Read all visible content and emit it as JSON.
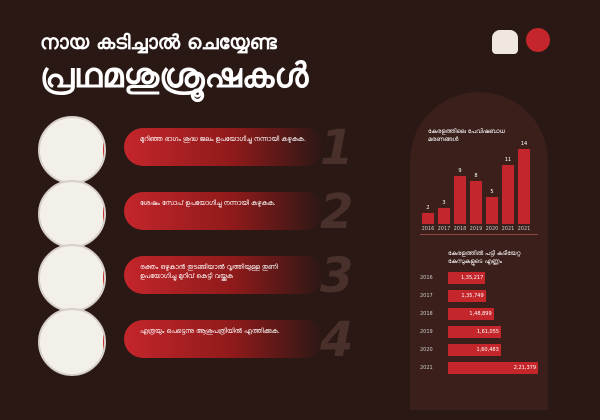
{
  "header": {
    "line1": "നായ കടിച്ചാൽ ചെയ്യേണ്ട",
    "line2": "പ്രഥമശുശ്രൂഷകൾ"
  },
  "steps": [
    {
      "number": "1",
      "text": "മുറിഞ്ഞ ഭാഗം ശുദ്ധ ജലം ഉപയോഗിച്ചു നന്നായി കഴുകുക.",
      "icon": "tap-water-hands-icon"
    },
    {
      "number": "2",
      "text": "ശേഷം സോപ് ഉപയോഗിച്ചു നന്നായി കഴുകുക.",
      "icon": "soap-hands-icon"
    },
    {
      "number": "3",
      "text": "രക്തം ഒഴുകാൻ തുടങ്ങിയാൽ വൃത്തിയുള്ള തുണി ഉപയോഗിച്ചു മുറിവ് കെട്ടി വയ്ക്കുക",
      "icon": "bandaged-hand-icon"
    },
    {
      "number": "4",
      "text": "എത്രയും പെട്ടെന്നു ആശുപത്രിയിൽ എത്തിക്കുക.",
      "icon": "hospital-icon"
    }
  ],
  "chart_data": [
    {
      "type": "bar",
      "title": "കേരളത്തിലെ പേവിഷബാധ മരണങ്ങൾ",
      "categories": [
        "2016",
        "2017",
        "2018",
        "2019",
        "2020",
        "2021",
        "2021"
      ],
      "values": [
        2,
        3,
        9,
        8,
        5,
        11,
        14
      ],
      "ylim": [
        0,
        15
      ]
    },
    {
      "type": "bar",
      "orientation": "horizontal",
      "title": "കേരളത്തിൽ പട്ടി കടിയേറ്റ കേസുകളുടെ എണ്ണം",
      "categories": [
        "2016",
        "2017",
        "2018",
        "2019",
        "2020",
        "2021"
      ],
      "values": [
        135217,
        135749,
        148899,
        161055,
        160483,
        221379
      ],
      "labels": [
        "1,35,217",
        "1,35,749",
        "1,48,899",
        "1,61,055",
        "1,60,483",
        "2,21,379"
      ]
    }
  ],
  "colors": {
    "background": "#2a1815",
    "accent": "#c4262b",
    "panel": "#3b1f1a"
  }
}
